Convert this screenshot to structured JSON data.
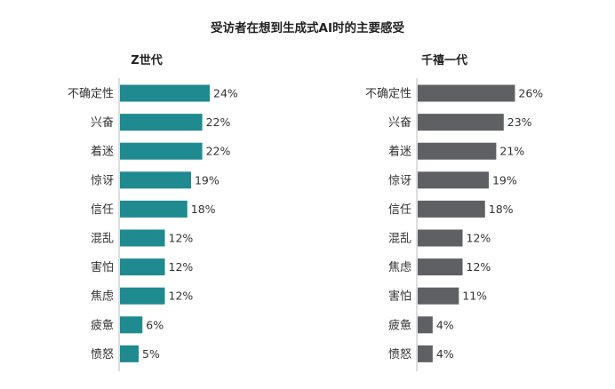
{
  "chart_data": {
    "type": "bar",
    "orientation": "horizontal",
    "title": "受访者在想到生成式AI时的主要感受",
    "unit": "%",
    "value_suffix": "%",
    "panels": [
      {
        "name": "Z世代",
        "color": "#1f8a8f",
        "categories": [
          "不确定性",
          "兴奋",
          "着迷",
          "惊讶",
          "信任",
          "混乱",
          "害怕",
          "焦虑",
          "疲惫",
          "愤怒"
        ],
        "values": [
          24,
          22,
          22,
          19,
          18,
          12,
          12,
          12,
          6,
          5
        ]
      },
      {
        "name": "千禧一代",
        "color": "#5f6064",
        "categories": [
          "不确定性",
          "兴奋",
          "着迷",
          "惊讶",
          "信任",
          "混乱",
          "焦虑",
          "害怕",
          "疲惫",
          "愤怒"
        ],
        "values": [
          26,
          23,
          21,
          19,
          18,
          12,
          12,
          11,
          4,
          4
        ]
      }
    ],
    "grid": false,
    "legend": "none"
  },
  "colors": {
    "background": "#ffffff",
    "axis_line": "#bdbdbd",
    "text": "#222222"
  }
}
